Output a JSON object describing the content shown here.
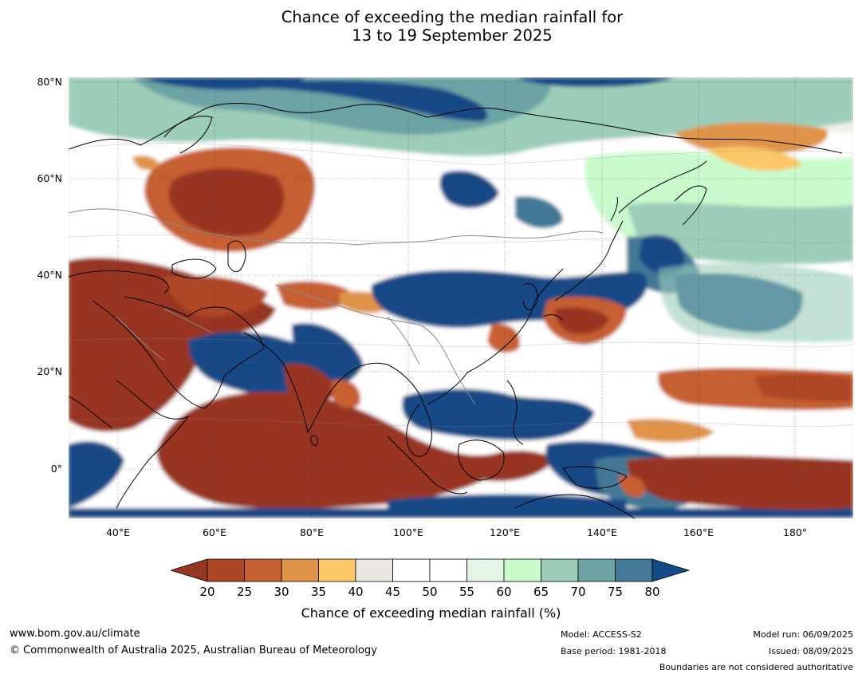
{
  "title": {
    "line1": "Chance of exceeding the median rainfall for",
    "line2": "13 to 19 September 2025"
  },
  "map": {
    "lat_labels": [
      "80°N",
      "60°N",
      "40°N",
      "20°N",
      "0°"
    ],
    "lon_labels": [
      "40°E",
      "60°E",
      "80°E",
      "100°E",
      "120°E",
      "140°E",
      "160°E",
      "180°"
    ],
    "extent": {
      "lon": [
        30,
        192
      ],
      "lat": [
        -10,
        80
      ]
    }
  },
  "colorbar": {
    "ticks": [
      "20",
      "25",
      "30",
      "35",
      "40",
      "45",
      "50",
      "55",
      "60",
      "65",
      "70",
      "75",
      "80"
    ],
    "colors": [
      "#983624",
      "#ad4627",
      "#c65f31",
      "#e0944a",
      "#fcc767",
      "#ebe8e3",
      "#ffffff",
      "#ffffff",
      "#e5f5e5",
      "#c9fbcc",
      "#9bcdb9",
      "#6ca3a4",
      "#437896",
      "#124a86"
    ],
    "label": "Chance of exceeding median rainfall (%)"
  },
  "footer": {
    "website": "www.bom.gov.au/climate",
    "copyright": "© Commonwealth of Australia 2025, Australian Bureau of Meteorology",
    "model": "Model: ACCESS-S2",
    "base_period": "Base period: 1981-2018",
    "model_run": "Model run: 06/09/2025",
    "issued": "Issued: 08/09/2025",
    "disclaimer": "Boundaries are not considered authoritative"
  }
}
